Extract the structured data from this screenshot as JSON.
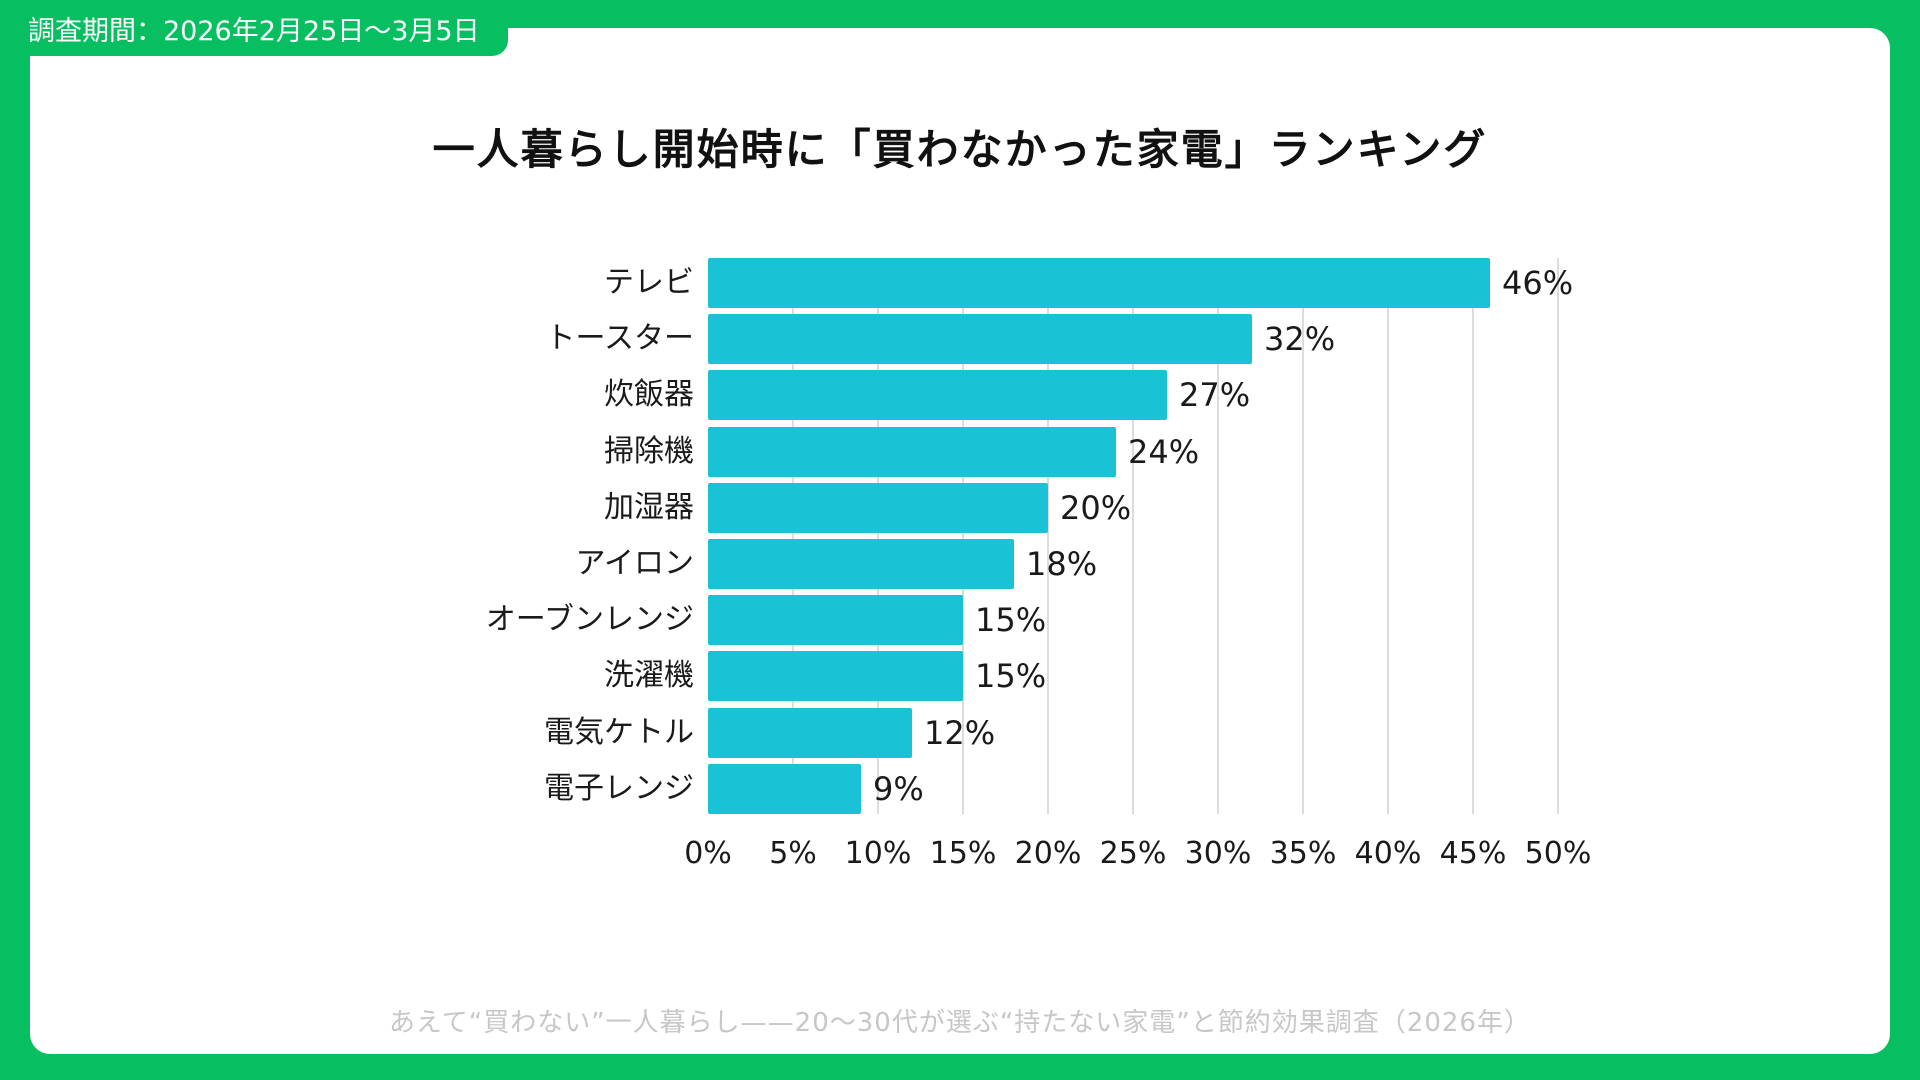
{
  "badge": {
    "text": "調査期間：2026年2月25日〜3月5日"
  },
  "footer": {
    "text": "あえて“買わない”一人暮らし——20〜30代が選ぶ“持たない家電”と節約効果調査（2026年）"
  },
  "colors": {
    "frame_green": "#07bf61",
    "bar_cyan": "#19c3d5",
    "gridline": "#dcdcdc",
    "title_text": "#111111",
    "label_text": "#1a1a1a",
    "footer_text": "#c7c7c7",
    "badge_text": "#ffffff",
    "card_bg": "#ffffff"
  },
  "chart_data": {
    "type": "bar",
    "orientation": "horizontal",
    "title": "一人暮らし開始時に「買わなかった家電」ランキング",
    "categories": [
      "テレビ",
      "トースター",
      "炊飯器",
      "掃除機",
      "加湿器",
      "アイロン",
      "オーブンレンジ",
      "洗濯機",
      "電気ケトル",
      "電子レンジ"
    ],
    "values": [
      46,
      32,
      27,
      24,
      20,
      18,
      15,
      15,
      12,
      9
    ],
    "value_labels": [
      "46%",
      "32%",
      "27%",
      "24%",
      "20%",
      "18%",
      "15%",
      "15%",
      "12%",
      "9%"
    ],
    "x_ticks": [
      "0%",
      "5%",
      "10%",
      "15%",
      "20%",
      "25%",
      "30%",
      "35%",
      "40%",
      "45%",
      "50%"
    ],
    "xlabel": "",
    "ylabel": "",
    "xlim": [
      0,
      50
    ],
    "grid": true,
    "legend": "none"
  }
}
